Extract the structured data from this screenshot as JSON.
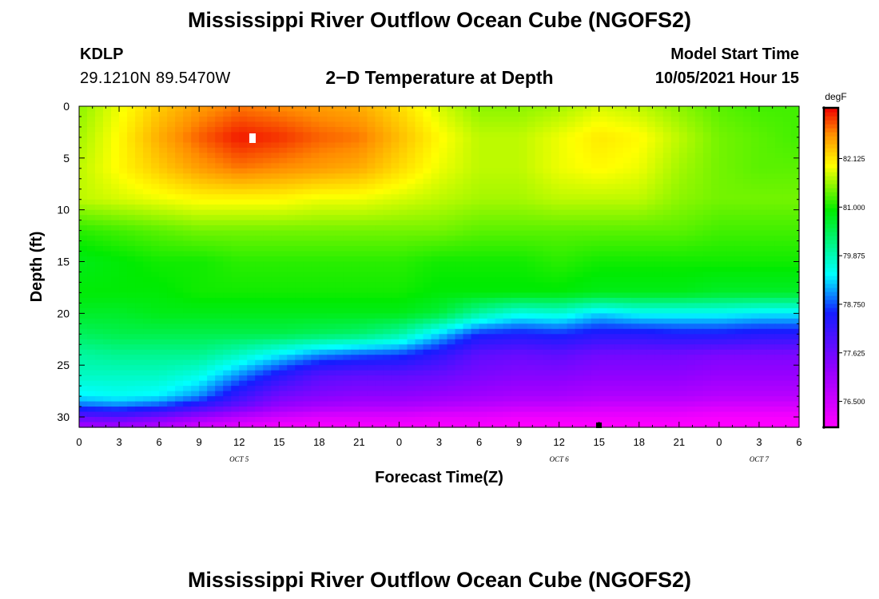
{
  "header": {
    "title": "Mississippi River Outflow Ocean Cube (NGOFS2)",
    "station_id": "KDLP",
    "station_coords": "29.1210N  89.5470W",
    "subtitle": "2−D Temperature at Depth",
    "model_label": "Model Start Time",
    "model_start": "10/05/2021 Hour 15",
    "footer_title": "Mississippi River Outflow Ocean Cube (NGOFS2)"
  },
  "chart_data": {
    "type": "heatmap",
    "title": "2−D Temperature at Depth",
    "xlabel": "Forecast Time(Z)",
    "ylabel": "Depth (ft)",
    "x_tick_labels": [
      "0",
      "3",
      "6",
      "9",
      "12",
      "15",
      "18",
      "21",
      "0",
      "3",
      "6",
      "9",
      "12",
      "15",
      "18",
      "21",
      "0",
      "3",
      "6"
    ],
    "x_range_hours": [
      0,
      54
    ],
    "date_labels": [
      {
        "text": "OCT 5",
        "hour": 12
      },
      {
        "text": "OCT 6",
        "hour": 36
      },
      {
        "text": "OCT 7",
        "hour": 51
      }
    ],
    "y_ticks": [
      0,
      5,
      10,
      15,
      20,
      25,
      30
    ],
    "y_range": [
      0,
      31
    ],
    "y_inverted": true,
    "colorbar": {
      "unit": "degF",
      "ticks": [
        76.5,
        77.625,
        78.75,
        79.875,
        81.0,
        82.125
      ],
      "tick_labels": [
        "76.500",
        "77.625",
        "78.750",
        "79.875",
        "81.000",
        "82.125"
      ],
      "range": [
        75.9,
        83.3
      ]
    },
    "time_hours": [
      0,
      3,
      6,
      9,
      12,
      15,
      18,
      21,
      24,
      27,
      30,
      33,
      36,
      39,
      42,
      45,
      48,
      51,
      54
    ],
    "depths_ft": [
      0,
      3,
      6,
      9,
      12,
      15,
      18,
      20,
      22,
      24,
      26,
      28,
      29,
      30,
      31
    ],
    "temperature_degF": [
      [
        81.5,
        81.9,
        82.3,
        82.6,
        82.8,
        82.7,
        82.6,
        82.5,
        82.2,
        81.8,
        81.5,
        81.5,
        81.6,
        81.8,
        81.7,
        81.5,
        81.3,
        81.2,
        81.2
      ],
      [
        81.6,
        82.0,
        82.5,
        82.9,
        83.2,
        83.1,
        82.9,
        82.8,
        82.4,
        82.0,
        81.7,
        81.7,
        81.9,
        82.1,
        82.0,
        81.7,
        81.4,
        81.3,
        81.2
      ],
      [
        81.7,
        82.0,
        82.3,
        82.6,
        82.8,
        82.7,
        82.6,
        82.5,
        82.2,
        81.9,
        81.7,
        81.7,
        81.9,
        82.0,
        81.9,
        81.6,
        81.4,
        81.3,
        81.3
      ],
      [
        81.7,
        81.8,
        81.9,
        82.0,
        82.0,
        82.0,
        81.9,
        81.9,
        81.8,
        81.7,
        81.6,
        81.6,
        81.7,
        81.7,
        81.7,
        81.5,
        81.4,
        81.4,
        81.4
      ],
      [
        81.1,
        81.2,
        81.3,
        81.4,
        81.4,
        81.4,
        81.4,
        81.4,
        81.4,
        81.4,
        81.3,
        81.3,
        81.3,
        81.3,
        81.3,
        81.3,
        81.2,
        81.2,
        81.2
      ],
      [
        80.8,
        80.9,
        81.0,
        81.0,
        81.1,
        81.1,
        81.1,
        81.1,
        81.1,
        81.0,
        81.0,
        81.0,
        81.1,
        81.0,
        81.0,
        81.0,
        81.0,
        81.0,
        81.0
      ],
      [
        80.9,
        80.9,
        80.9,
        81.0,
        81.0,
        81.0,
        81.0,
        81.0,
        81.0,
        80.9,
        80.9,
        80.9,
        80.9,
        80.8,
        80.8,
        80.8,
        80.7,
        80.7,
        80.7
      ],
      [
        80.7,
        80.7,
        80.8,
        80.8,
        80.8,
        80.8,
        80.8,
        80.8,
        80.8,
        80.6,
        80.0,
        79.6,
        79.7,
        79.3,
        79.5,
        79.5,
        79.5,
        79.4,
        79.4
      ],
      [
        80.4,
        80.5,
        80.5,
        80.5,
        80.5,
        80.5,
        80.4,
        80.3,
        80.0,
        79.3,
        78.6,
        78.5,
        78.6,
        78.4,
        78.4,
        78.5,
        78.5,
        78.4,
        78.4
      ],
      [
        80.0,
        80.1,
        80.1,
        80.1,
        79.8,
        79.4,
        79.0,
        78.8,
        78.7,
        78.3,
        77.8,
        77.7,
        77.8,
        77.6,
        77.6,
        77.6,
        77.5,
        77.5,
        77.5
      ],
      [
        79.8,
        79.8,
        79.8,
        79.6,
        79.0,
        78.4,
        77.9,
        77.8,
        77.8,
        77.7,
        77.5,
        77.4,
        77.4,
        77.3,
        77.3,
        77.3,
        77.2,
        77.2,
        77.2
      ],
      [
        79.4,
        79.5,
        79.4,
        79.0,
        78.2,
        77.6,
        77.4,
        77.3,
        77.3,
        77.2,
        77.1,
        77.0,
        77.0,
        76.9,
        76.9,
        76.9,
        76.8,
        76.8,
        76.8
      ],
      [
        78.8,
        78.9,
        78.7,
        78.2,
        77.7,
        77.2,
        77.0,
        76.9,
        76.9,
        76.8,
        76.7,
        76.6,
        76.6,
        76.5,
        76.5,
        76.5,
        76.4,
        76.4,
        76.4
      ],
      [
        77.8,
        77.9,
        77.6,
        77.2,
        76.8,
        76.5,
        76.3,
        76.3,
        76.3,
        76.2,
        76.2,
        76.1,
        76.1,
        76.1,
        76.1,
        76.1,
        76.0,
        76.0,
        76.0
      ],
      [
        77.0,
        77.0,
        76.8,
        76.4,
        76.2,
        76.0,
        76.0,
        76.0,
        76.0,
        76.0,
        76.0,
        75.9,
        75.9,
        75.9,
        75.9,
        75.9,
        75.9,
        75.9,
        75.9
      ]
    ]
  }
}
